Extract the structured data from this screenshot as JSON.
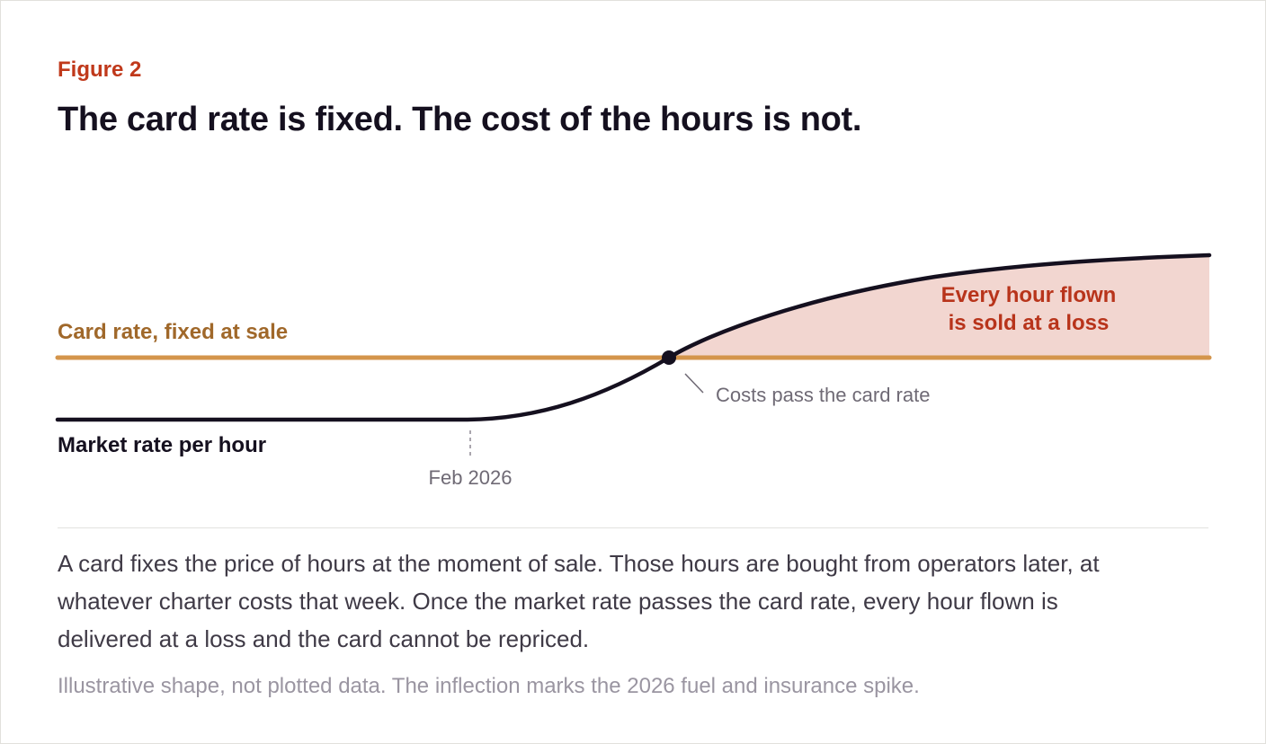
{
  "figure": {
    "kicker": "Figure 2",
    "title": "The card rate is fixed. The cost of the hours is not."
  },
  "chart_data": {
    "type": "line",
    "title": "The card rate is fixed. The cost of the hours is not.",
    "series": [
      {
        "name": "Card rate, fixed at sale",
        "role": "constant",
        "color": "#d4954c"
      },
      {
        "name": "Market rate per hour",
        "role": "rising",
        "color": "#15101f"
      }
    ],
    "x_tick_labels": [
      "Feb 2026"
    ],
    "annotations": {
      "crossing": "Costs pass the card rate",
      "loss_area_line1": "Every hour flown",
      "loss_area_line2": "is sold at a loss"
    },
    "illustrative": true,
    "colors": {
      "card": "#d4954c",
      "card_label": "#a0682a",
      "market": "#15101f",
      "loss_fill": "#f2d6d0",
      "loss_text": "#b8341b",
      "muted": "#6f6a75"
    }
  },
  "caption": {
    "body": "A card fixes the price of hours at the moment of sale. Those hours are bought from operators later, at whatever charter costs that week. Once the market rate passes the card rate, every hour flown is delivered at a loss and the card cannot be repriced.",
    "note": "Illustrative shape, not plotted data. The inflection marks the 2026 fuel and insurance spike."
  }
}
